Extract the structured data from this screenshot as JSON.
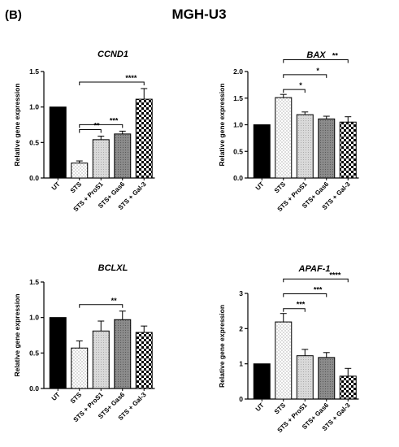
{
  "panel_label": "(B)",
  "figure_title": "MGH-U3",
  "chart_data": [
    {
      "type": "bar",
      "title": "CCND1",
      "ylabel": "Relative gene expression",
      "ylim": [
        0,
        1.5
      ],
      "yticks": [
        "0.0",
        "0.5",
        "1.0",
        "1.5"
      ],
      "categories": [
        "UT",
        "STS",
        "STS + ProS1",
        "STS+ Gas6",
        "STS + Gal-3"
      ],
      "values": [
        1.0,
        0.21,
        0.54,
        0.62,
        1.11
      ],
      "errors": [
        0,
        0.03,
        0.05,
        0.04,
        0.15
      ],
      "significance": [
        {
          "from": 1,
          "to": 2,
          "label": "**"
        },
        {
          "from": 1,
          "to": 3,
          "label": "***"
        },
        {
          "from": 1,
          "to": 4,
          "label": "****"
        }
      ]
    },
    {
      "type": "bar",
      "title": "BAX",
      "ylabel": "Relative gene expression",
      "ylim": [
        0,
        2.0
      ],
      "yticks": [
        "0.0",
        "0.5",
        "1.0",
        "1.5",
        "2.0"
      ],
      "categories": [
        "UT",
        "STS",
        "STS + ProS1",
        "STS+ Gas6",
        "STS + Gal-3"
      ],
      "values": [
        1.0,
        1.51,
        1.19,
        1.11,
        1.05
      ],
      "errors": [
        0,
        0.06,
        0.05,
        0.05,
        0.1
      ],
      "significance": [
        {
          "from": 1,
          "to": 2,
          "label": "*"
        },
        {
          "from": 1,
          "to": 3,
          "label": "*"
        },
        {
          "from": 1,
          "to": 4,
          "label": "**"
        }
      ]
    },
    {
      "type": "bar",
      "title": "BCLXL",
      "ylabel": "Relative gene expression",
      "ylim": [
        0,
        1.5
      ],
      "yticks": [
        "0.0",
        "0.5",
        "1.0",
        "1.5"
      ],
      "categories": [
        "UT",
        "STS",
        "STS + ProS1",
        "STS+ Gas6",
        "STS + Gal-3"
      ],
      "values": [
        1.0,
        0.57,
        0.81,
        0.97,
        0.79
      ],
      "errors": [
        0,
        0.1,
        0.14,
        0.12,
        0.09
      ],
      "significance": [
        {
          "from": 1,
          "to": 3,
          "label": "**"
        }
      ]
    },
    {
      "type": "bar",
      "title": "APAF-1",
      "ylabel": "Relative gene expression",
      "ylim": [
        0,
        3
      ],
      "yticks": [
        "0",
        "1",
        "2",
        "3"
      ],
      "categories": [
        "UT",
        "STS",
        "STS + ProS1",
        "STS+ Gas6",
        "STS + Gal-3"
      ],
      "values": [
        1.0,
        2.19,
        1.23,
        1.18,
        0.65
      ],
      "errors": [
        0,
        0.24,
        0.18,
        0.14,
        0.22
      ],
      "significance": [
        {
          "from": 1,
          "to": 2,
          "label": "***"
        },
        {
          "from": 1,
          "to": 3,
          "label": "***"
        },
        {
          "from": 1,
          "to": 4,
          "label": "****"
        }
      ]
    }
  ]
}
